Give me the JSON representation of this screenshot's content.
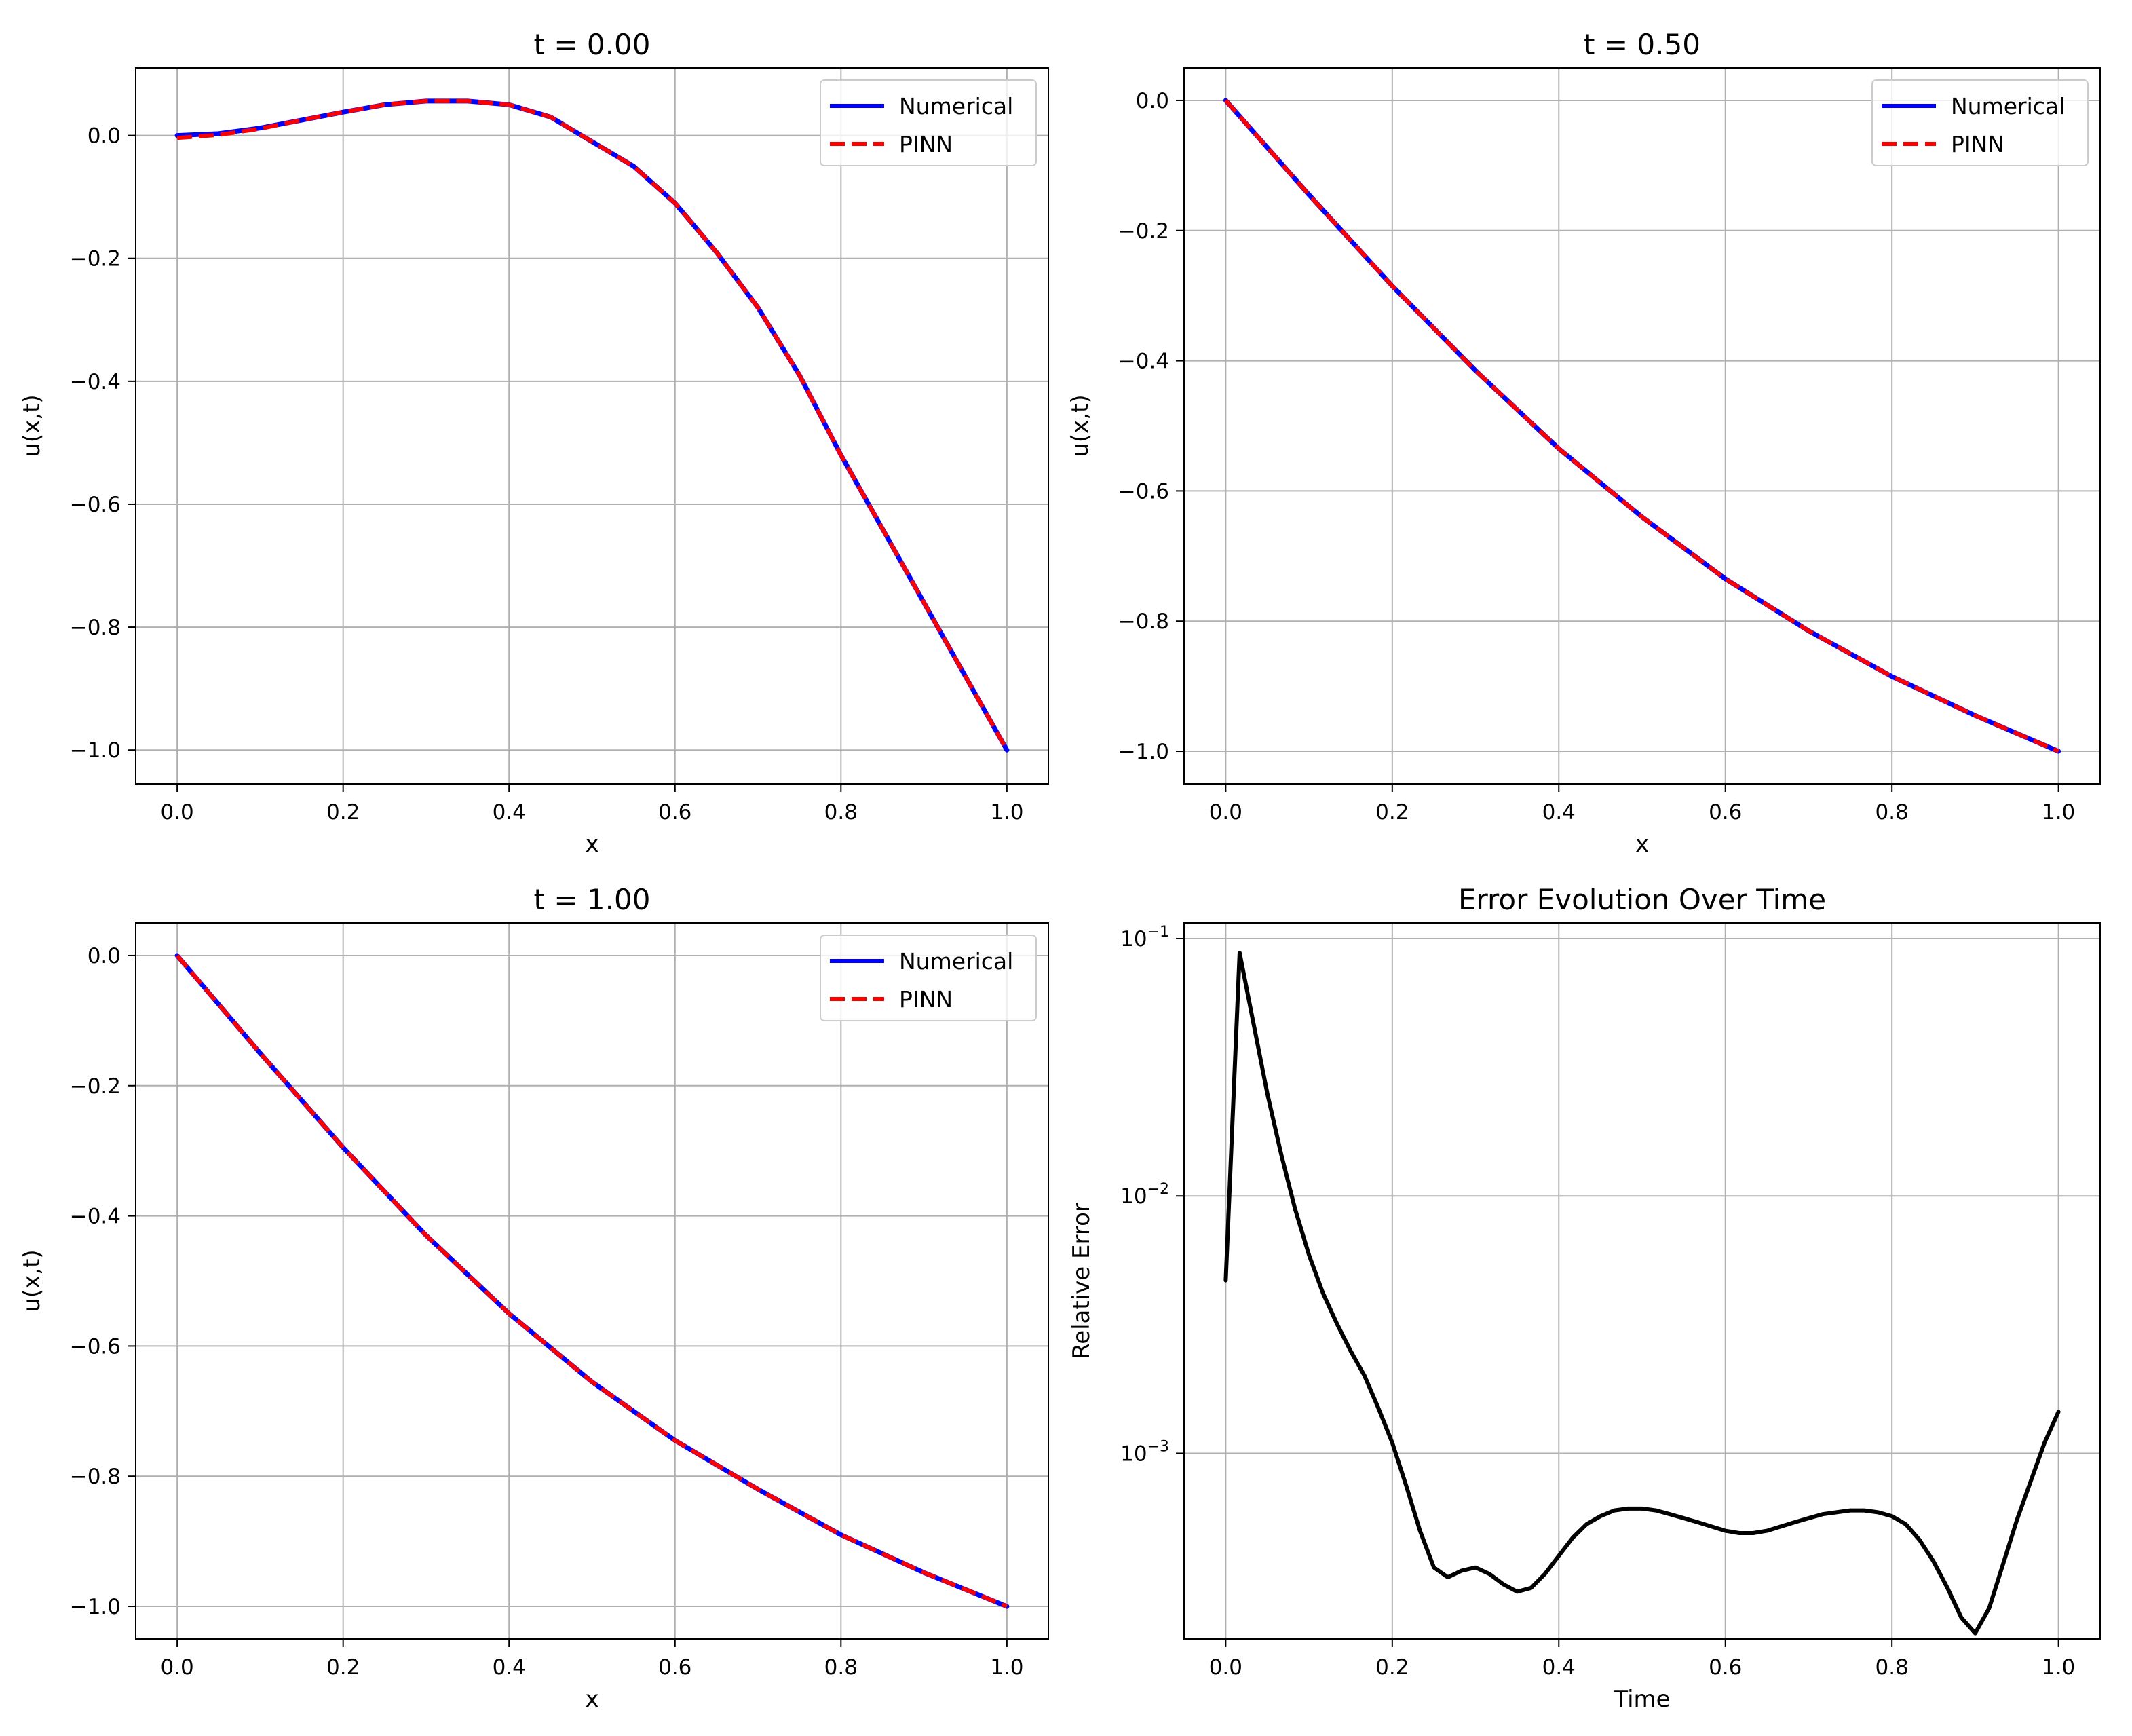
{
  "figure": {
    "background": "#ffffff"
  },
  "colors": {
    "numerical": "#0000ff",
    "pinn": "#ff0000",
    "error": "#000000",
    "grid": "#b0b0b0",
    "axes": "#000000",
    "legend_border": "#cccccc"
  },
  "chart_data": [
    {
      "type": "line",
      "title": "t = 0.00",
      "xlabel": "x",
      "ylabel": "u(x,t)",
      "xlim": [
        -0.05,
        1.05
      ],
      "ylim": [
        -1.055,
        0.11
      ],
      "yscale": "linear",
      "grid": true,
      "legend": "top-right",
      "xticks": [
        0.0,
        0.2,
        0.4,
        0.6,
        0.8,
        1.0
      ],
      "xtick_labels": [
        "0.0",
        "0.2",
        "0.4",
        "0.6",
        "0.8",
        "1.0"
      ],
      "yticks": [
        0.0,
        -0.2,
        -0.4,
        -0.6,
        -0.8,
        -1.0
      ],
      "ytick_labels": [
        "0.0",
        "−0.2",
        "−0.4",
        "−0.6",
        "−0.8",
        "−1.0"
      ],
      "x": [
        0.0,
        0.05,
        0.1,
        0.15,
        0.2,
        0.25,
        0.3,
        0.35,
        0.4,
        0.45,
        0.5,
        0.55,
        0.6,
        0.65,
        0.7,
        0.75,
        0.8,
        0.85,
        0.9,
        0.95,
        1.0
      ],
      "series": [
        {
          "name": "Numerical",
          "style": "solid",
          "values": [
            0.0,
            0.003,
            0.012,
            0.025,
            0.038,
            0.05,
            0.056,
            0.056,
            0.05,
            0.03,
            -0.01,
            -0.05,
            -0.11,
            -0.19,
            -0.28,
            -0.39,
            -0.52,
            -0.64,
            -0.76,
            -0.88,
            -1.0
          ]
        },
        {
          "name": "PINN",
          "style": "dashed",
          "values": [
            -0.004,
            0.001,
            0.011,
            0.025,
            0.038,
            0.05,
            0.056,
            0.056,
            0.05,
            0.03,
            -0.01,
            -0.05,
            -0.11,
            -0.19,
            -0.28,
            -0.39,
            -0.52,
            -0.64,
            -0.76,
            -0.88,
            -1.0
          ]
        }
      ]
    },
    {
      "type": "line",
      "title": "t = 0.50",
      "xlabel": "x",
      "ylabel": "u(x,t)",
      "xlim": [
        -0.05,
        1.05
      ],
      "ylim": [
        -1.05,
        0.05
      ],
      "yscale": "linear",
      "grid": true,
      "legend": "top-right",
      "xticks": [
        0.0,
        0.2,
        0.4,
        0.6,
        0.8,
        1.0
      ],
      "xtick_labels": [
        "0.0",
        "0.2",
        "0.4",
        "0.6",
        "0.8",
        "1.0"
      ],
      "yticks": [
        0.0,
        -0.2,
        -0.4,
        -0.6,
        -0.8,
        -1.0
      ],
      "ytick_labels": [
        "0.0",
        "−0.2",
        "−0.4",
        "−0.6",
        "−0.8",
        "−1.0"
      ],
      "x": [
        0.0,
        0.1,
        0.2,
        0.3,
        0.4,
        0.5,
        0.6,
        0.7,
        0.8,
        0.9,
        1.0
      ],
      "series": [
        {
          "name": "Numerical",
          "style": "solid",
          "values": [
            0.0,
            -0.145,
            -0.285,
            -0.415,
            -0.535,
            -0.64,
            -0.735,
            -0.815,
            -0.885,
            -0.945,
            -1.0
          ]
        },
        {
          "name": "PINN",
          "style": "dashed",
          "values": [
            0.0,
            -0.145,
            -0.285,
            -0.415,
            -0.535,
            -0.64,
            -0.735,
            -0.815,
            -0.885,
            -0.945,
            -1.0
          ]
        }
      ]
    },
    {
      "type": "line",
      "title": "t = 1.00",
      "xlabel": "x",
      "ylabel": "u(x,t)",
      "xlim": [
        -0.05,
        1.05
      ],
      "ylim": [
        -1.05,
        0.05
      ],
      "yscale": "linear",
      "grid": true,
      "legend": "top-right",
      "xticks": [
        0.0,
        0.2,
        0.4,
        0.6,
        0.8,
        1.0
      ],
      "xtick_labels": [
        "0.0",
        "0.2",
        "0.4",
        "0.6",
        "0.8",
        "1.0"
      ],
      "yticks": [
        0.0,
        -0.2,
        -0.4,
        -0.6,
        -0.8,
        -1.0
      ],
      "ytick_labels": [
        "0.0",
        "−0.2",
        "−0.4",
        "−0.6",
        "−0.8",
        "−1.0"
      ],
      "x": [
        0.0,
        0.1,
        0.2,
        0.3,
        0.4,
        0.5,
        0.6,
        0.7,
        0.8,
        0.9,
        1.0
      ],
      "series": [
        {
          "name": "Numerical",
          "style": "solid",
          "values": [
            0.0,
            -0.15,
            -0.295,
            -0.43,
            -0.55,
            -0.655,
            -0.745,
            -0.82,
            -0.89,
            -0.948,
            -1.0
          ]
        },
        {
          "name": "PINN",
          "style": "dashed",
          "values": [
            0.0,
            -0.15,
            -0.295,
            -0.43,
            -0.55,
            -0.655,
            -0.745,
            -0.82,
            -0.89,
            -0.948,
            -1.0
          ]
        }
      ]
    },
    {
      "type": "line",
      "title": "Error Evolution Over Time",
      "xlabel": "Time",
      "ylabel": "Relative Error",
      "xlim": [
        -0.05,
        1.05
      ],
      "ylim": [
        0.00019,
        0.115
      ],
      "yscale": "log",
      "grid": true,
      "legend": "none",
      "xticks": [
        0.0,
        0.2,
        0.4,
        0.6,
        0.8,
        1.0
      ],
      "xtick_labels": [
        "0.0",
        "0.2",
        "0.4",
        "0.6",
        "0.8",
        "1.0"
      ],
      "yticks": [
        0.1,
        0.01,
        0.001
      ],
      "ytick_labels": [
        {
          "base": "10",
          "exp": "−1"
        },
        {
          "base": "10",
          "exp": "−2"
        },
        {
          "base": "10",
          "exp": "−3"
        }
      ],
      "x": [
        0.0,
        0.0167,
        0.0333,
        0.05,
        0.0667,
        0.0833,
        0.1,
        0.1167,
        0.1333,
        0.15,
        0.1667,
        0.1833,
        0.2,
        0.2167,
        0.2333,
        0.25,
        0.2667,
        0.2833,
        0.3,
        0.3167,
        0.3333,
        0.35,
        0.3667,
        0.3833,
        0.4,
        0.4167,
        0.4333,
        0.45,
        0.4667,
        0.4833,
        0.5,
        0.5167,
        0.5333,
        0.55,
        0.5667,
        0.5833,
        0.6,
        0.6167,
        0.6333,
        0.65,
        0.6667,
        0.6833,
        0.7,
        0.7167,
        0.7333,
        0.75,
        0.7667,
        0.7833,
        0.8,
        0.8167,
        0.8333,
        0.85,
        0.8667,
        0.8833,
        0.9,
        0.9167,
        0.9333,
        0.95,
        0.9667,
        0.9833,
        1.0
      ],
      "series": [
        {
          "name": "Relative Error",
          "style": "solid",
          "values": [
            0.0047,
            0.088,
            0.047,
            0.025,
            0.0145,
            0.0089,
            0.0059,
            0.0042,
            0.0032,
            0.0025,
            0.002,
            0.0015,
            0.0011,
            0.00075,
            0.0005,
            0.00036,
            0.00033,
            0.00035,
            0.00036,
            0.00034,
            0.00031,
            0.00029,
            0.0003,
            0.00034,
            0.0004,
            0.00047,
            0.00053,
            0.00057,
            0.0006,
            0.00061,
            0.00061,
            0.0006,
            0.00058,
            0.00056,
            0.00054,
            0.00052,
            0.0005,
            0.00049,
            0.00049,
            0.0005,
            0.00052,
            0.00054,
            0.00056,
            0.00058,
            0.00059,
            0.0006,
            0.0006,
            0.00059,
            0.00057,
            0.00053,
            0.00046,
            0.00038,
            0.0003,
            0.00023,
            0.0002,
            0.00025,
            0.00037,
            0.00055,
            0.00078,
            0.0011,
            0.00145
          ]
        }
      ]
    }
  ]
}
